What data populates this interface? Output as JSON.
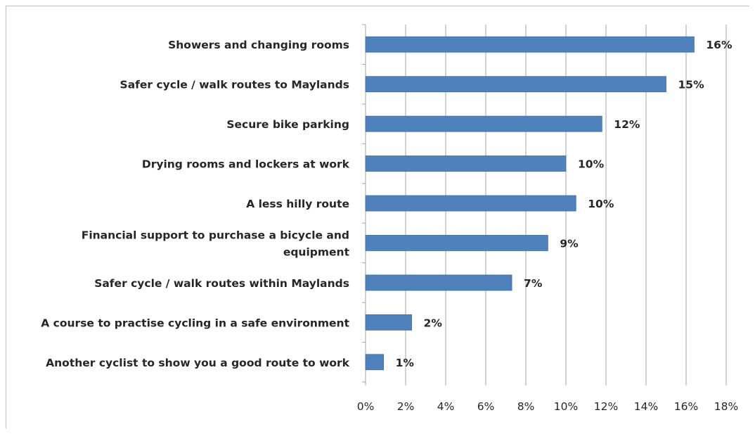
{
  "chart_data": {
    "type": "bar",
    "orientation": "horizontal",
    "categories": [
      "Showers and changing rooms",
      "Safer cycle / walk routes to Maylands",
      "Secure bike parking",
      "Drying rooms and lockers at work",
      "A less hilly route",
      "Financial support to purchase a bicycle and equipment",
      "Safer cycle / walk routes within Maylands",
      "A course to practise cycling in a safe environment",
      "Another cyclist to show you a good route to work"
    ],
    "category_lines": [
      [
        "Showers and changing rooms"
      ],
      [
        "Safer cycle / walk routes to Maylands"
      ],
      [
        "Secure bike parking"
      ],
      [
        "Drying rooms and lockers at work"
      ],
      [
        "A less hilly route"
      ],
      [
        "Financial support to purchase a bicycle and",
        "equipment"
      ],
      [
        "Safer cycle / walk routes within Maylands"
      ],
      [
        "A course to practise cycling in a safe environment"
      ],
      [
        "Another cyclist to show you a good route to work"
      ]
    ],
    "values": [
      16.4,
      15.0,
      11.8,
      10.0,
      10.5,
      9.1,
      7.3,
      2.3,
      0.9
    ],
    "data_labels": [
      "16%",
      "15%",
      "12%",
      "10%",
      "10%",
      "9%",
      "7%",
      "2%",
      "1%"
    ],
    "xlim": [
      0,
      18
    ],
    "x_ticks": [
      0,
      2,
      4,
      6,
      8,
      10,
      12,
      14,
      16,
      18
    ],
    "x_tick_labels": [
      "0%",
      "2%",
      "4%",
      "6%",
      "8%",
      "10%",
      "12%",
      "14%",
      "16%",
      "18%"
    ],
    "grid": "vertical",
    "legend": "none",
    "title": "",
    "xlabel": "",
    "ylabel": "",
    "colors": {
      "bar": "#4f81bd",
      "bar_edge": "#3c6da8",
      "grid": "#a6a6a6",
      "text": "#262626"
    }
  }
}
